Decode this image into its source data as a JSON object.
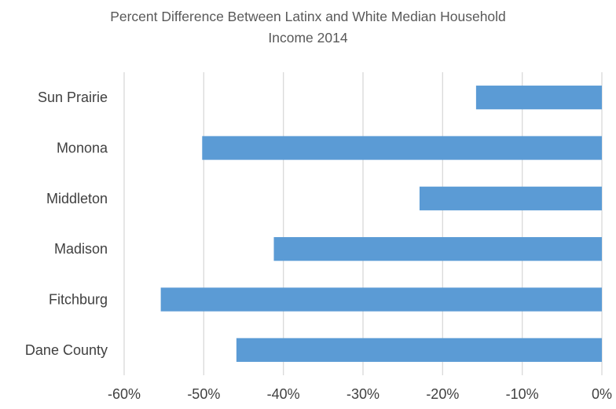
{
  "chart_data": {
    "type": "bar",
    "orientation": "horizontal",
    "title_lines": [
      "Percent Difference Between Latinx and White Median Household",
      "Income 2014"
    ],
    "categories": [
      "Sun Prairie",
      "Monona",
      "Middleton",
      "Madison",
      "Fitchburg",
      "Dane County"
    ],
    "values": [
      -15.8,
      -50.2,
      -22.9,
      -41.2,
      -55.4,
      -45.9
    ],
    "xlim": [
      -60,
      0
    ],
    "xticks": [
      -60,
      -50,
      -40,
      -30,
      -20,
      -10,
      0
    ],
    "xtick_labels": [
      "-60%",
      "-50%",
      "-40%",
      "-30%",
      "-20%",
      "-10%",
      "0%"
    ],
    "xlabel": "",
    "ylabel": "",
    "grid": "vertical",
    "legend": "none",
    "bar_color": "#5B9BD5",
    "grid_color": "#D9D9D9"
  }
}
